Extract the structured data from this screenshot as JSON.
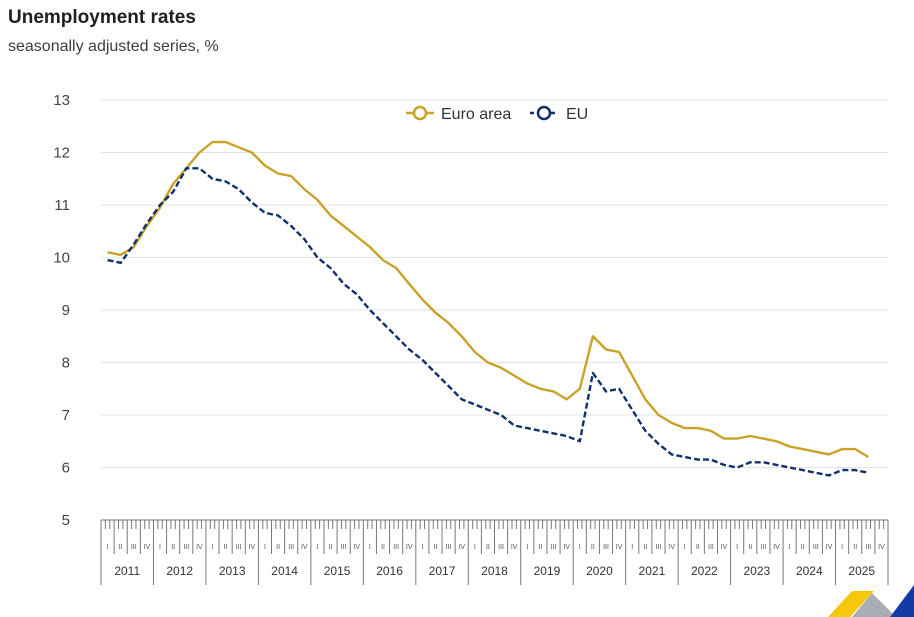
{
  "header": {
    "title": "Unemployment rates",
    "subtitle": "seasonally adjusted series, %"
  },
  "legend": {
    "euro_area": "Euro area",
    "eu": "EU"
  },
  "colors": {
    "euro_area": "#c9a227",
    "eu": "#10306e",
    "grid": "#e3e3e3",
    "axis": "#777777"
  },
  "chart_data": {
    "type": "line",
    "title": "Unemployment rates",
    "subtitle": "seasonally adjusted series, %",
    "xlabel": "",
    "ylabel": "",
    "ylim": [
      5,
      13
    ],
    "yticks": [
      5,
      6,
      7,
      8,
      9,
      10,
      11,
      12,
      13
    ],
    "grid": true,
    "legend_position": "top",
    "x_unit": "quarter",
    "years": [
      "2011",
      "2012",
      "2013",
      "2014",
      "2015",
      "2016",
      "2017",
      "2018",
      "2019",
      "2020",
      "2021",
      "2022",
      "2023",
      "2024",
      "2025"
    ],
    "quarter_labels": [
      "I",
      "II",
      "III",
      "IV"
    ],
    "x": [
      "2011-Q1",
      "2011-Q2",
      "2011-Q3",
      "2011-Q4",
      "2012-Q1",
      "2012-Q2",
      "2012-Q3",
      "2012-Q4",
      "2013-Q1",
      "2013-Q2",
      "2013-Q3",
      "2013-Q4",
      "2014-Q1",
      "2014-Q2",
      "2014-Q3",
      "2014-Q4",
      "2015-Q1",
      "2015-Q2",
      "2015-Q3",
      "2015-Q4",
      "2016-Q1",
      "2016-Q2",
      "2016-Q3",
      "2016-Q4",
      "2017-Q1",
      "2017-Q2",
      "2017-Q3",
      "2017-Q4",
      "2018-Q1",
      "2018-Q2",
      "2018-Q3",
      "2018-Q4",
      "2019-Q1",
      "2019-Q2",
      "2019-Q3",
      "2019-Q4",
      "2020-Q1",
      "2020-Q2",
      "2020-Q3",
      "2020-Q4",
      "2021-Q1",
      "2021-Q2",
      "2021-Q3",
      "2021-Q4",
      "2022-Q1",
      "2022-Q2",
      "2022-Q3",
      "2022-Q4",
      "2023-Q1",
      "2023-Q2",
      "2023-Q3",
      "2023-Q4",
      "2024-Q1",
      "2024-Q2",
      "2024-Q3",
      "2024-Q4",
      "2025-Q1",
      "2025-Q2",
      "2025-Q3"
    ],
    "series": [
      {
        "name": "Euro area",
        "style": "solid",
        "values": [
          10.1,
          10.05,
          10.2,
          10.6,
          10.95,
          11.4,
          11.7,
          12.0,
          12.2,
          12.2,
          12.1,
          12.0,
          11.75,
          11.6,
          11.55,
          11.3,
          11.1,
          10.8,
          10.6,
          10.4,
          10.2,
          9.95,
          9.8,
          9.5,
          9.2,
          8.95,
          8.75,
          8.5,
          8.2,
          8.0,
          7.9,
          7.75,
          7.6,
          7.5,
          7.45,
          7.3,
          7.5,
          8.5,
          8.25,
          8.2,
          7.75,
          7.3,
          7.0,
          6.85,
          6.75,
          6.75,
          6.7,
          6.55,
          6.55,
          6.6,
          6.55,
          6.5,
          6.4,
          6.35,
          6.3,
          6.25,
          6.35,
          6.35,
          6.2
        ]
      },
      {
        "name": "EU",
        "style": "dashed",
        "values": [
          9.95,
          9.9,
          10.25,
          10.65,
          11.0,
          11.25,
          11.7,
          11.7,
          11.5,
          11.45,
          11.3,
          11.05,
          10.85,
          10.8,
          10.6,
          10.35,
          10.0,
          9.8,
          9.5,
          9.3,
          9.0,
          8.75,
          8.5,
          8.25,
          8.05,
          7.8,
          7.55,
          7.3,
          7.2,
          7.1,
          7.0,
          6.8,
          6.75,
          6.7,
          6.65,
          6.6,
          6.5,
          7.8,
          7.45,
          7.5,
          7.1,
          6.7,
          6.45,
          6.25,
          6.2,
          6.15,
          6.15,
          6.05,
          6.0,
          6.1,
          6.1,
          6.05,
          6.0,
          5.95,
          5.9,
          5.85,
          5.95,
          5.95,
          5.9
        ]
      }
    ]
  }
}
